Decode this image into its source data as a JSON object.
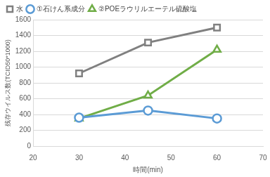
{
  "chart_data": {
    "type": "line",
    "x_label": "時間(min)",
    "y_label": "残存ウイルス数(TCID50*1000)",
    "x": [
      30,
      45,
      60
    ],
    "series": [
      {
        "name": "水",
        "color": "#808080",
        "marker": "square",
        "values": [
          920,
          1310,
          1500
        ]
      },
      {
        "name": "①石けん系成分",
        "color": "#5b9bd5",
        "marker": "circle",
        "values": [
          360,
          450,
          350
        ]
      },
      {
        "name": "②POEラウリルエーテル硫酸塩",
        "color": "#70ad47",
        "marker": "triangle",
        "values": [
          350,
          640,
          1220
        ]
      }
    ],
    "xlim": [
      20,
      70
    ],
    "xticks": [
      20,
      30,
      40,
      50,
      60,
      70
    ],
    "ylim": [
      0,
      1600
    ],
    "yticks": [
      0,
      200,
      400,
      600,
      800,
      1000,
      1200,
      1400,
      1600
    ],
    "grid": true,
    "legend": "top-left"
  }
}
